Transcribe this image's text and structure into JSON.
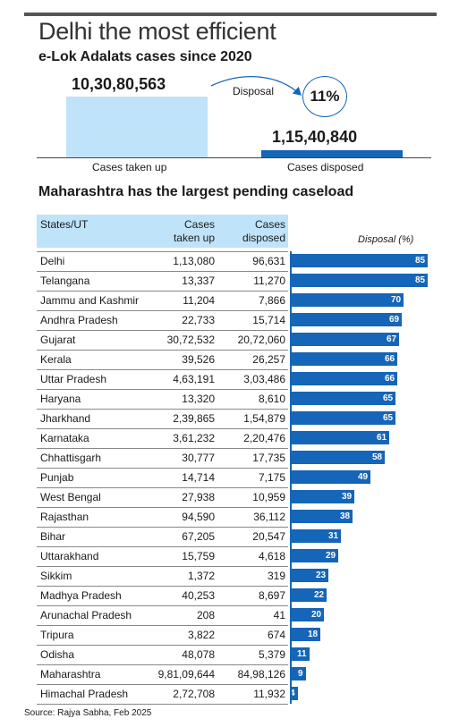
{
  "headline": "Delhi the most efficient",
  "overview": {
    "title": "e-Lok Adalats cases since 2020",
    "taken_up_value": "10,30,80,563",
    "disposed_value": "1,15,40,840",
    "taken_up_label": "Cases taken up",
    "disposed_label": "Cases disposed",
    "arrow_label": "Disposal",
    "disposal_percent": "11%"
  },
  "table": {
    "title": "Maharashtra has the largest pending caseload",
    "col_state": "States/UT",
    "col_taken_line1": "Cases",
    "col_taken_line2": "taken up",
    "col_disp_line1": "Cases",
    "col_disp_line2": "disposed",
    "col_pct": "Disposal (%)"
  },
  "colors": {
    "bar": "#1565b8",
    "header_bg": "#bfe3f8"
  },
  "chart_data": {
    "type": "bar",
    "title": "Maharashtra has the largest pending caseload",
    "xlabel": "",
    "ylabel": "Disposal (%)",
    "ylim": [
      0,
      85
    ],
    "categories": [
      "Delhi",
      "Telangana",
      "Jammu and Kashmir",
      "Andhra Pradesh",
      "Gujarat",
      "Kerala",
      "Uttar Pradesh",
      "Haryana",
      "Jharkhand",
      "Karnataka",
      "Chhattisgarh",
      "Punjab",
      "West Bengal",
      "Rajasthan",
      "Bihar",
      "Uttarakhand",
      "Sikkim",
      "Madhya Pradesh",
      "Arunachal Pradesh",
      "Tripura",
      "Odisha",
      "Maharashtra",
      "Himachal Pradesh"
    ],
    "cases_taken_up": [
      "1,13,080",
      "13,337",
      "11,204",
      "22,733",
      "30,72,532",
      "39,526",
      "4,63,191",
      "13,320",
      "2,39,865",
      "3,61,232",
      "30,777",
      "14,714",
      "27,938",
      "94,590",
      "67,205",
      "15,759",
      "1,372",
      "40,253",
      "208",
      "3,822",
      "48,078",
      "9,81,09,644",
      "2,72,708"
    ],
    "cases_disposed": [
      "96,631",
      "11,270",
      "7,866",
      "15,714",
      "20,72,060",
      "26,257",
      "3,03,486",
      "8,610",
      "1,54,879",
      "2,20,476",
      "17,735",
      "7,175",
      "10,959",
      "36,112",
      "20,547",
      "4,618",
      "319",
      "8,697",
      "41",
      "674",
      "5,379",
      "84,98,126",
      "11,932"
    ],
    "values": [
      85,
      85,
      70,
      69,
      67,
      66,
      66,
      65,
      65,
      61,
      58,
      49,
      39,
      38,
      31,
      29,
      23,
      22,
      20,
      18,
      11,
      9,
      4
    ]
  },
  "source": "Source: Rajya Sabha, Feb 2025"
}
